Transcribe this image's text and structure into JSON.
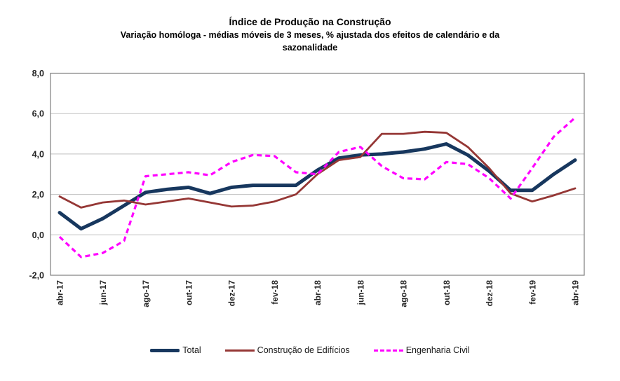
{
  "title": "Índice de Produção na Construção",
  "subtitle": "Variação homóloga - médias móveis de 3 meses, % ajustada dos efeitos de calendário e da sazonalidade",
  "colors": {
    "total": "#17375E",
    "construcao_edificios": "#953735",
    "engenharia_civil": "#FF00FF",
    "gridline": "#BFBFBF",
    "frame": "#7F7F7F",
    "axis_text": "#262626"
  },
  "chart_data": {
    "type": "line",
    "x": [
      "abr-17",
      "mai-17",
      "jun-17",
      "jul-17",
      "ago-17",
      "set-17",
      "out-17",
      "nov-17",
      "dez-17",
      "jan-18",
      "fev-18",
      "mar-18",
      "abr-18",
      "mai-18",
      "jun-18",
      "jul-18",
      "ago-18",
      "set-18",
      "out-18",
      "nov-18",
      "dez-18",
      "jan-19",
      "fev-19",
      "mar-19",
      "abr-19"
    ],
    "x_ticks_shown": [
      "abr-17",
      "jun-17",
      "ago-17",
      "out-17",
      "dez-17",
      "fev-18",
      "abr-18",
      "jun-18",
      "ago-18",
      "out-18",
      "dez-18",
      "fev-19",
      "abr-19"
    ],
    "ylim": [
      -2.0,
      8.0
    ],
    "y_ticks": [
      {
        "value": 8,
        "label": "8,0"
      },
      {
        "value": 6,
        "label": "6,0"
      },
      {
        "value": 4,
        "label": "4,0"
      },
      {
        "value": 2,
        "label": "2,0"
      },
      {
        "value": 0,
        "label": "0,0"
      },
      {
        "value": -2,
        "label": "-2,0"
      }
    ],
    "grid": "horizontal",
    "legend_position": "bottom",
    "series": [
      {
        "key": "total",
        "name": "Total",
        "color": "#17375E",
        "style": "solid",
        "width": 5,
        "values": [
          1.1,
          0.3,
          0.8,
          1.45,
          2.1,
          2.25,
          2.35,
          2.05,
          2.35,
          2.45,
          2.45,
          2.45,
          3.2,
          3.8,
          3.95,
          4.0,
          4.1,
          4.25,
          4.5,
          3.95,
          3.15,
          2.2,
          2.2,
          3.0,
          3.7
        ]
      },
      {
        "key": "edificios",
        "name": "Construção de Edifícios",
        "color": "#953735",
        "style": "solid",
        "width": 2.8,
        "values": [
          1.9,
          1.35,
          1.6,
          1.7,
          1.5,
          1.65,
          1.8,
          1.6,
          1.4,
          1.45,
          1.65,
          2.0,
          3.0,
          3.7,
          3.85,
          5.0,
          5.0,
          5.1,
          5.05,
          4.35,
          3.3,
          2.05,
          1.65,
          1.95,
          2.3
        ]
      },
      {
        "key": "engenharia",
        "name": "Engenharia Civil",
        "color": "#FF00FF",
        "style": "dashed",
        "width": 3.2,
        "values": [
          -0.1,
          -1.1,
          -0.9,
          -0.3,
          2.9,
          3.0,
          3.1,
          2.95,
          3.6,
          3.95,
          3.9,
          3.1,
          3.0,
          4.1,
          4.35,
          3.4,
          2.8,
          2.75,
          3.6,
          3.5,
          2.8,
          1.8,
          3.3,
          4.85,
          5.8
        ]
      }
    ]
  }
}
